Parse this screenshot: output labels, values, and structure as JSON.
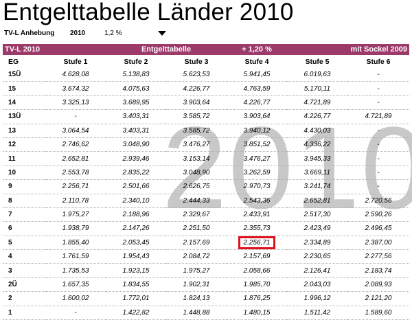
{
  "page": {
    "title": "Entgelttabelle Länder 2010",
    "subheader": {
      "label": "TV-L Anhebung",
      "year": "2010",
      "percent": "1,2 %",
      "dropdown_icon": "triangle-down-icon"
    },
    "watermark": "2010"
  },
  "table": {
    "band": {
      "left": "TV-L 2010",
      "center": "Entgelttabelle",
      "increase": "+ 1,20 %",
      "right": "mit Sockel 2009"
    },
    "columns": [
      "EG",
      "Stufe 1",
      "Stufe 2",
      "Stufe 3",
      "Stufe 4",
      "Stufe 5",
      "Stufe 6"
    ],
    "rows": [
      [
        "15Ü",
        "4.628,08",
        "5.138,83",
        "5.623,53",
        "5.941,45",
        "6.019,63",
        "-"
      ],
      [
        "15",
        "3.674,32",
        "4.075,63",
        "4.226,77",
        "4.763,59",
        "5.170,11",
        "-"
      ],
      [
        "14",
        "3.325,13",
        "3.689,95",
        "3.903,64",
        "4.226,77",
        "4.721,89",
        "-"
      ],
      [
        "13Ü",
        "-",
        "3.403,31",
        "3.585,72",
        "3.903,64",
        "4.226,77",
        "4.721,89"
      ],
      [
        "13",
        "3.064,54",
        "3.403,31",
        "3.585,72",
        "3.940,12",
        "4.430,03",
        "-"
      ],
      [
        "12",
        "2.746,62",
        "3.048,90",
        "3.476,27",
        "3.851,52",
        "4.336,22",
        "-"
      ],
      [
        "11",
        "2.652,81",
        "2.939,46",
        "3.153,14",
        "3.476,27",
        "3.945,33",
        "-"
      ],
      [
        "10",
        "2.553,78",
        "2.835,22",
        "3.048,90",
        "3.262,59",
        "3.669,11",
        "-"
      ],
      [
        "9",
        "2.256,71",
        "2.501,66",
        "2.626,75",
        "2.970,73",
        "3.241,74",
        "-"
      ],
      [
        "8",
        "2.110,78",
        "2.340,10",
        "2.444,33",
        "2.543,36",
        "2.652,81",
        "2.720,56"
      ],
      [
        "7",
        "1.975,27",
        "2.188,96",
        "2.329,67",
        "2.433,91",
        "2.517,30",
        "2.590,26"
      ],
      [
        "6",
        "1.938,79",
        "2.147,26",
        "2.251,50",
        "2.355,73",
        "2.423,49",
        "2.496,45"
      ],
      [
        "5",
        "1.855,40",
        "2.053,45",
        "2.157,69",
        "2.256,71",
        "2.334,89",
        "2.387,00"
      ],
      [
        "4",
        "1.761,59",
        "1.954,43",
        "2.084,72",
        "2.157,69",
        "2.230,65",
        "2.277,56"
      ],
      [
        "3",
        "1.735,53",
        "1.923,15",
        "1.975,27",
        "2.058,66",
        "2.126,41",
        "2.183,74"
      ],
      [
        "2Ü",
        "1.657,35",
        "1.834,55",
        "1.902,31",
        "1.985,70",
        "2.043,03",
        "2.089,93"
      ],
      [
        "2",
        "1.600,02",
        "1.772,01",
        "1.824,13",
        "1.876,25",
        "1.996,12",
        "2.121,20"
      ],
      [
        "1",
        "-",
        "1.422,82",
        "1.448,88",
        "1.480,15",
        "1.511,42",
        "1.589,60"
      ]
    ],
    "highlight": {
      "row": 12,
      "col": 4,
      "color": "#e0101a"
    }
  },
  "colors": {
    "band": "#9c3a6a",
    "watermark": "#c8c8c8"
  }
}
